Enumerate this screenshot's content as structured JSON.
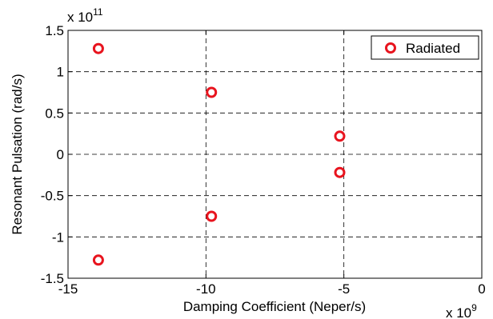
{
  "chart_data": {
    "type": "scatter",
    "xlabel": "Damping Coefficient (Neper/s)",
    "ylabel": "Resonant Pulsation (rad/s)",
    "x_multiplier": "x 10",
    "x_exponent": "9",
    "y_multiplier": "x 10",
    "y_exponent": "11",
    "xlim": [
      -15,
      0
    ],
    "ylim": [
      -1.5,
      1.5
    ],
    "x_ticks": [
      -15,
      -10,
      -5,
      0
    ],
    "x_tick_labels": [
      "-15",
      "-10",
      "-5",
      "0"
    ],
    "y_ticks": [
      -1.5,
      -1,
      -0.5,
      0,
      0.5,
      1,
      1.5
    ],
    "y_tick_labels": [
      "-1.5",
      "-1",
      "-0.5",
      "0",
      "0.5",
      "1",
      "1.5"
    ],
    "grid": true,
    "legend_position": "top-right",
    "series": [
      {
        "name": "Radiated",
        "color": "#e8141e",
        "marker": "circle",
        "points": [
          {
            "x": -13.9,
            "y": 1.28
          },
          {
            "x": -13.9,
            "y": -1.28
          },
          {
            "x": -9.8,
            "y": 0.75
          },
          {
            "x": -9.8,
            "y": -0.75
          },
          {
            "x": -5.15,
            "y": 0.22
          },
          {
            "x": -5.15,
            "y": -0.22
          }
        ]
      }
    ]
  }
}
